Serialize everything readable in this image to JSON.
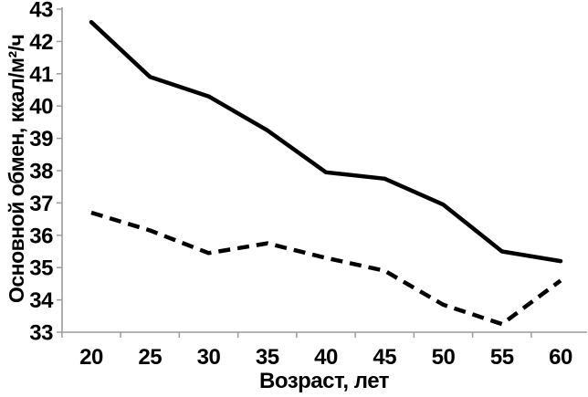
{
  "figure": {
    "background": "#ffffff"
  },
  "chart_data": {
    "type": "line",
    "title": "",
    "xlabel": "Возраст, лет",
    "ylabel": "Основной обмен, ккал/м²/ч",
    "categories": [
      20,
      25,
      30,
      35,
      40,
      45,
      50,
      55,
      60
    ],
    "x_tick_labels": [
      "20",
      "25",
      "30",
      "35",
      "40",
      "45",
      "50",
      "55",
      "60"
    ],
    "series": [
      {
        "name": "series-1-solid",
        "line_style": "solid",
        "color": "#000000",
        "values": [
          42.6,
          40.9,
          40.3,
          39.25,
          37.95,
          37.75,
          36.95,
          35.5,
          35.2
        ]
      },
      {
        "name": "series-2-dashed",
        "line_style": "dashed",
        "color": "#000000",
        "values": [
          36.7,
          36.15,
          35.45,
          35.75,
          35.3,
          34.9,
          33.85,
          33.25,
          34.6
        ]
      }
    ],
    "y_ticks": [
      33,
      34,
      35,
      36,
      37,
      38,
      39,
      40,
      41,
      42,
      43
    ],
    "ylim": [
      33,
      43
    ],
    "grid": false,
    "legend_position": "none",
    "axis_color": "#9b9b9b",
    "line_color": "#000000",
    "text_color": "#000000"
  }
}
